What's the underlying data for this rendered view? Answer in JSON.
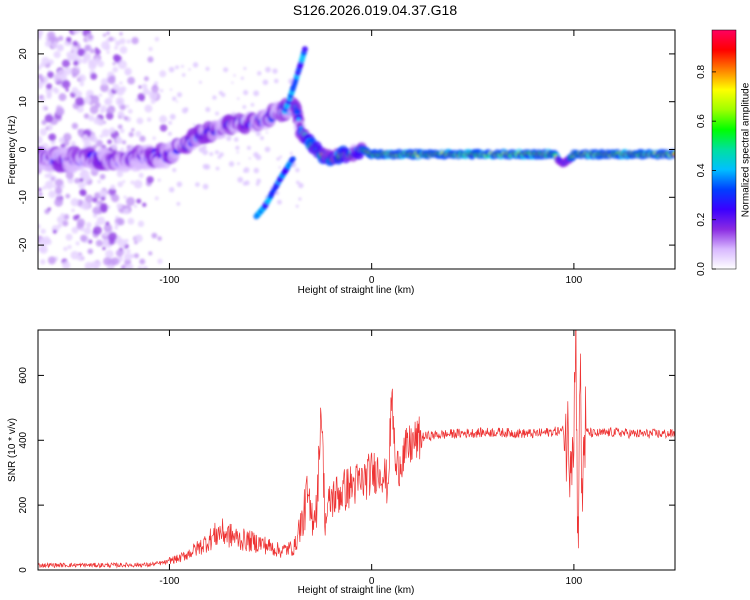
{
  "title": "S126.2026.019.04.37.G18",
  "chart_data": [
    {
      "type": "heatmap",
      "name": "spectrogram",
      "xlabel": "Height of straight line (km)",
      "ylabel": "Frequency (Hz)",
      "xlim": [
        -165,
        150
      ],
      "ylim": [
        -25,
        25
      ],
      "xticks": [
        -100,
        0,
        100
      ],
      "yticks": [
        -20,
        -10,
        0,
        10,
        20
      ],
      "colorbar": {
        "label": "Normalized spectral amplitude",
        "range": [
          0,
          0.97
        ],
        "ticks": [
          0.0,
          0.2,
          0.4,
          0.6,
          0.8
        ],
        "colors": [
          "#ffffff",
          "#d8b8ff",
          "#8a2be2",
          "#3a00ff",
          "#0040ff",
          "#00c0ff",
          "#00e0a0",
          "#00ff00",
          "#a0ff00",
          "#ffff00",
          "#ff8000",
          "#ff0000",
          "#ff0060"
        ]
      },
      "ridge": {
        "x": [
          -165,
          -120,
          -100,
          -85,
          -70,
          -55,
          -45,
          -38,
          -34,
          -30,
          -25,
          -20,
          -15,
          -10,
          -5,
          0,
          20,
          50,
          90,
          95,
          100,
          150
        ],
        "y": [
          -2,
          -2,
          -1,
          3,
          5,
          6,
          8,
          9,
          3,
          1,
          -1,
          -2,
          -1,
          -1,
          0,
          -1,
          -1,
          -1,
          -1,
          -3,
          -1,
          -1
        ]
      },
      "branches": [
        {
          "x": [
            -57,
            -53,
            -49,
            -45,
            -42,
            -39
          ],
          "y": [
            -14,
            -12,
            -9,
            -6,
            -4,
            -2
          ]
        },
        {
          "x": [
            -43,
            -41,
            -38,
            -35,
            -33
          ],
          "y": [
            8,
            10,
            14,
            18,
            21
          ]
        }
      ]
    },
    {
      "type": "line",
      "name": "snr",
      "xlabel": "Height of straight line (km)",
      "ylabel": "SNR (10 * v/v)",
      "xlim": [
        -165,
        150
      ],
      "ylim": [
        0,
        740
      ],
      "xticks": [
        -100,
        0,
        100
      ],
      "yticks": [
        0,
        200,
        400,
        600
      ],
      "series": [
        {
          "name": "SNR",
          "color": "#ee3333",
          "x": [
            -165,
            -130,
            -110,
            -95,
            -85,
            -75,
            -65,
            -55,
            -45,
            -38,
            -34,
            -32,
            -30,
            -27,
            -25,
            -23,
            -20,
            -15,
            -10,
            -5,
            0,
            5,
            8,
            10,
            12,
            15,
            20,
            25,
            30,
            40,
            60,
            80,
            95,
            98,
            100,
            101,
            102,
            103,
            104,
            105,
            107,
            110,
            120,
            130,
            150
          ],
          "y": [
            15,
            15,
            16,
            30,
            60,
            100,
            80,
            70,
            50,
            60,
            150,
            230,
            160,
            200,
            520,
            150,
            220,
            240,
            260,
            270,
            300,
            310,
            260,
            540,
            300,
            350,
            390,
            410,
            415,
            420,
            425,
            420,
            430,
            380,
            460,
            740,
            60,
            650,
            180,
            430,
            425,
            420,
            425,
            420,
            420
          ]
        }
      ]
    }
  ]
}
